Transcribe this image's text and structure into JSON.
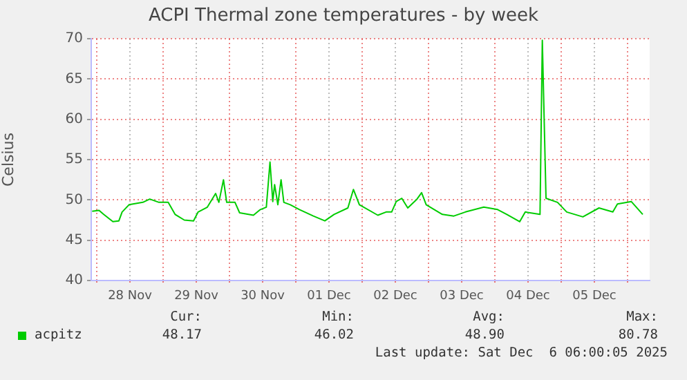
{
  "chart_data": {
    "type": "line",
    "title": "ACPI Thermal zone temperatures - by week",
    "ylabel": "Celsius",
    "x": [
      "2025-11-27T22:20",
      "2025-11-28T00:50",
      "2025-11-28T02:30",
      "2025-11-28T05:50",
      "2025-11-28T08:00",
      "2025-11-28T09:10",
      "2025-11-28T11:40",
      "2025-11-28T16:40",
      "2025-11-28T19:10",
      "2025-11-28T22:30",
      "2025-11-29T01:50",
      "2025-11-29T04:20",
      "2025-11-29T07:40",
      "2025-11-29T11:00",
      "2025-11-29T12:40",
      "2025-11-29T16:00",
      "2025-11-29T19:00",
      "2025-11-29T20:10",
      "2025-11-29T21:50",
      "2025-11-29T23:00",
      "2025-11-30T02:00",
      "2025-11-30T03:40",
      "2025-11-30T08:40",
      "2025-11-30T11:10",
      "2025-11-30T13:20",
      "2025-11-30T14:40",
      "2025-11-30T15:40",
      "2025-11-30T16:20",
      "2025-11-30T17:30",
      "2025-11-30T18:40",
      "2025-11-30T19:40",
      "2025-11-30T22:00",
      "2025-12-01T01:20",
      "2025-12-01T06:20",
      "2025-12-01T10:30",
      "2025-12-01T13:50",
      "2025-12-01T18:50",
      "2025-12-01T20:50",
      "2025-12-01T23:00",
      "2025-12-02T05:40",
      "2025-12-02T08:40",
      "2025-12-02T10:40",
      "2025-12-02T12:20",
      "2025-12-02T14:20",
      "2025-12-02T16:30",
      "2025-12-02T19:50",
      "2025-12-02T21:30",
      "2025-12-02T23:10",
      "2025-12-03T05:00",
      "2025-12-03T09:10",
      "2025-12-03T13:20",
      "2025-12-03T20:00",
      "2025-12-04T01:00",
      "2025-12-04T04:20",
      "2025-12-04T09:00",
      "2025-12-04T11:00",
      "2025-12-04T16:20",
      "2025-12-04T17:10",
      "2025-12-04T18:30",
      "2025-12-04T22:40",
      "2025-12-05T02:00",
      "2025-12-05T07:50",
      "2025-12-05T13:40",
      "2025-12-05T18:40",
      "2025-12-05T20:20",
      "2025-12-06T01:20",
      "2025-12-06T05:30"
    ],
    "series": [
      {
        "name": "acpitz",
        "color": "#00cc00",
        "values": [
          48.6,
          48.7,
          48.2,
          47.3,
          47.4,
          48.5,
          49.4,
          49.7,
          50.1,
          49.7,
          49.7,
          48.2,
          47.5,
          47.4,
          48.5,
          49.1,
          50.8,
          49.7,
          52.5,
          49.7,
          49.7,
          48.4,
          48.1,
          48.8,
          49.1,
          54.7,
          49.8,
          51.9,
          49.4,
          52.5,
          49.7,
          49.4,
          48.8,
          48.0,
          47.4,
          48.2,
          49.0,
          51.3,
          49.4,
          48.1,
          48.5,
          48.5,
          49.8,
          50.2,
          49.0,
          50.1,
          50.9,
          49.4,
          48.2,
          48.0,
          48.5,
          49.1,
          48.8,
          48.2,
          47.3,
          48.5,
          48.2,
          69.8,
          50.2,
          49.7,
          48.5,
          47.9,
          49.0,
          48.5,
          49.5,
          49.8,
          48.2
        ]
      }
    ],
    "xlim": [
      "2025-11-27T22:00",
      "2025-12-06T08:00"
    ],
    "xticks": [
      {
        "value": "2025-11-28T00:00",
        "label": null
      },
      {
        "value": "2025-11-28T12:00",
        "label": "28 Nov"
      },
      {
        "value": "2025-11-29T00:00",
        "label": null
      },
      {
        "value": "2025-11-29T12:00",
        "label": "29 Nov"
      },
      {
        "value": "2025-11-30T00:00",
        "label": null
      },
      {
        "value": "2025-11-30T12:00",
        "label": "30 Nov"
      },
      {
        "value": "2025-12-01T00:00",
        "label": null
      },
      {
        "value": "2025-12-01T12:00",
        "label": "01 Dec"
      },
      {
        "value": "2025-12-02T00:00",
        "label": null
      },
      {
        "value": "2025-12-02T12:00",
        "label": "02 Dec"
      },
      {
        "value": "2025-12-03T00:00",
        "label": null
      },
      {
        "value": "2025-12-03T12:00",
        "label": "03 Dec"
      },
      {
        "value": "2025-12-04T00:00",
        "label": null
      },
      {
        "value": "2025-12-04T12:00",
        "label": "04 Dec"
      },
      {
        "value": "2025-12-05T00:00",
        "label": null
      },
      {
        "value": "2025-12-05T12:00",
        "label": "05 Dec"
      },
      {
        "value": "2025-12-06T00:00",
        "label": null
      }
    ],
    "ylim": [
      40,
      70
    ],
    "yticks": [
      40,
      45,
      50,
      55,
      60,
      65,
      70
    ],
    "grid": true,
    "legend": "bottom",
    "marker": "none",
    "line_style": "solid",
    "annotations": [
      "Cur:",
      "Min:",
      "Avg:",
      "Max:",
      "48.17",
      "46.02",
      "48.90",
      "80.78",
      "Last update: Sat Dec  6 06:00:05 2025"
    ]
  }
}
